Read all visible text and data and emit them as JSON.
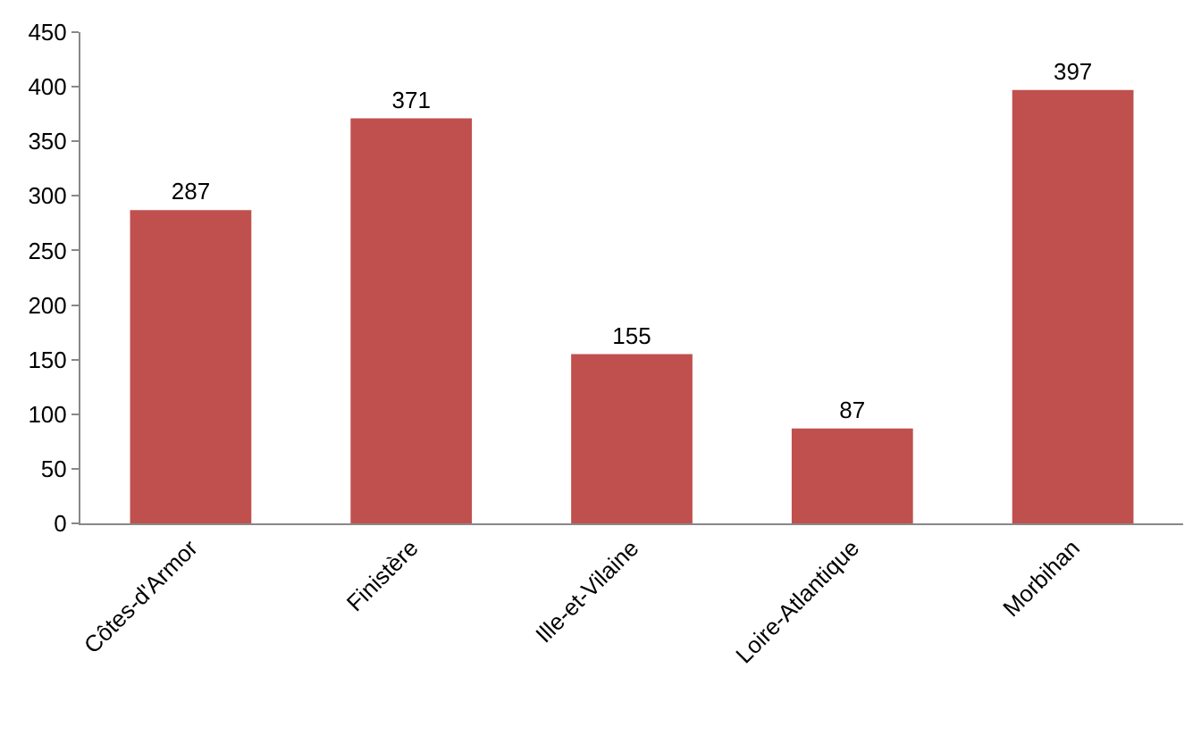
{
  "chart_data": {
    "type": "bar",
    "categories": [
      "Côtes-d'Armor",
      "Finistère",
      "Ille-et-Vilaine",
      "Loire-Atlantique",
      "Morbihan"
    ],
    "values": [
      287,
      371,
      155,
      87,
      397
    ],
    "color": "#c0504d",
    "ylim": [
      0,
      450
    ],
    "yticks": [
      0,
      50,
      100,
      150,
      200,
      250,
      300,
      350,
      400,
      450
    ],
    "grid": false,
    "data_labels": true
  }
}
